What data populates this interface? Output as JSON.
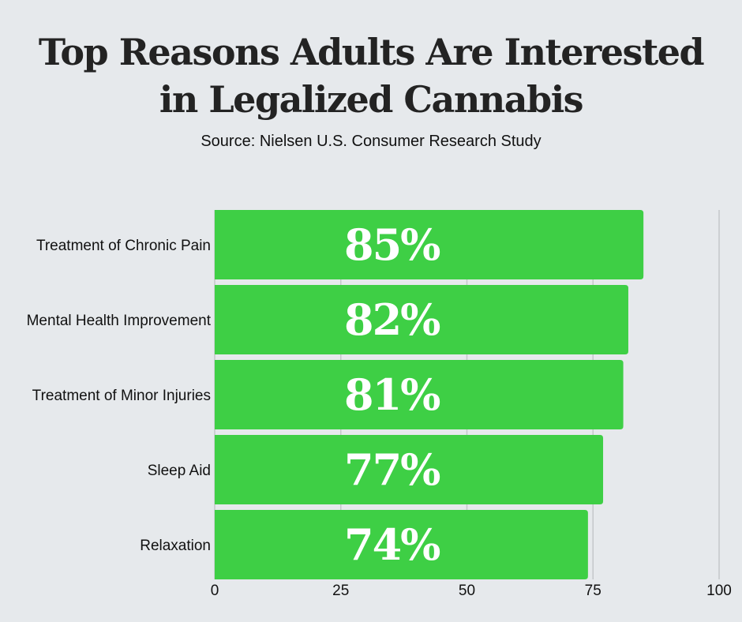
{
  "chart_data": {
    "type": "bar",
    "orientation": "horizontal",
    "title_lines": [
      "Top Reasons Adults Are Interested",
      "in Legalized Cannabis"
    ],
    "subtitle": "Source: Nielsen U.S. Consumer Research Study",
    "categories": [
      "Treatment of Chronic Pain",
      "Mental Health Improvement",
      "Treatment of Minor Injuries",
      "Sleep Aid",
      "Relaxation"
    ],
    "values": [
      85,
      82,
      81,
      77,
      74
    ],
    "data_labels": [
      "85%",
      "82%",
      "81%",
      "77%",
      "74%"
    ],
    "xlim": [
      0,
      100
    ],
    "xticks": [
      0,
      25,
      50,
      75,
      100
    ],
    "xtick_labels": [
      "0",
      "25",
      "50",
      "75",
      "100"
    ],
    "grid": true,
    "legend": "none",
    "bar_color": "#3ecf45",
    "grid_color": "#c4c7ca"
  }
}
